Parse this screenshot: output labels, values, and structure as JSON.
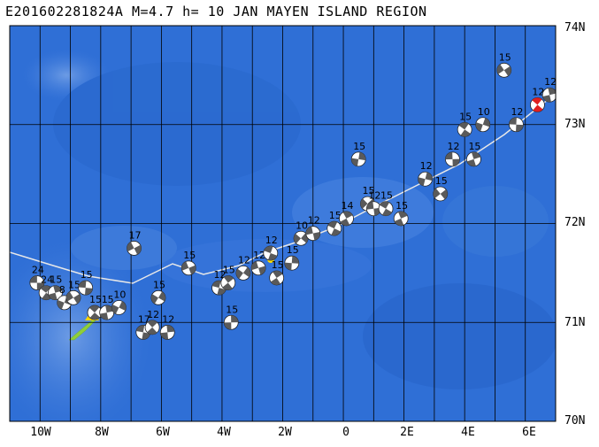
{
  "header": {
    "title": "E201602281824A M=4.7 h= 10 JAN MAYEN ISLAND REGION"
  },
  "map": {
    "lon_range": [
      -11,
      7
    ],
    "lat_range": [
      70,
      74
    ],
    "lat_labels": [
      "74N",
      "73N",
      "72N",
      "71N",
      "70N"
    ],
    "lat_values": [
      74,
      73,
      72,
      71,
      70
    ],
    "lon_labels": [
      "10W",
      "8W",
      "6W",
      "4W",
      "2W",
      "0",
      "2E",
      "4E",
      "6E"
    ],
    "lon_values": [
      -10,
      -8,
      -6,
      -4,
      -2,
      0,
      2,
      4,
      6
    ],
    "colors": {
      "ocean": "#2f6fd6",
      "deep": "#2a5fc0",
      "grid": "#000000",
      "ridge": "#e8e8e8",
      "island": "#8fce3a"
    }
  },
  "events": [
    {
      "lon": -10.1,
      "lat": 71.4,
      "depth": "24"
    },
    {
      "lon": -9.8,
      "lat": 71.3,
      "depth": "24"
    },
    {
      "lon": -9.5,
      "lat": 71.3,
      "depth": "15"
    },
    {
      "lon": -9.2,
      "lat": 71.2,
      "depth": "8"
    },
    {
      "lon": -8.9,
      "lat": 71.25,
      "depth": "15"
    },
    {
      "lon": -8.5,
      "lat": 71.35,
      "depth": "15"
    },
    {
      "lon": -8.2,
      "lat": 71.1,
      "depth": "15"
    },
    {
      "lon": -7.8,
      "lat": 71.1,
      "depth": "15"
    },
    {
      "lon": -7.4,
      "lat": 71.15,
      "depth": "10"
    },
    {
      "lon": -6.9,
      "lat": 71.75,
      "depth": "17"
    },
    {
      "lon": -6.6,
      "lat": 70.9,
      "depth": "17"
    },
    {
      "lon": -6.3,
      "lat": 70.95,
      "depth": "12"
    },
    {
      "lon": -5.8,
      "lat": 70.9,
      "depth": "12"
    },
    {
      "lon": -6.1,
      "lat": 71.25,
      "depth": "15"
    },
    {
      "lon": -5.1,
      "lat": 71.55,
      "depth": "15"
    },
    {
      "lon": -4.1,
      "lat": 71.35,
      "depth": "12"
    },
    {
      "lon": -3.8,
      "lat": 71.4,
      "depth": "15"
    },
    {
      "lon": -3.7,
      "lat": 71.0,
      "depth": "15"
    },
    {
      "lon": -3.3,
      "lat": 71.5,
      "depth": "12"
    },
    {
      "lon": -2.8,
      "lat": 71.55,
      "depth": "12"
    },
    {
      "lon": -2.4,
      "lat": 71.7,
      "depth": "12"
    },
    {
      "lon": -2.2,
      "lat": 71.45,
      "depth": "15"
    },
    {
      "lon": -1.7,
      "lat": 71.6,
      "depth": "15"
    },
    {
      "lon": -1.4,
      "lat": 71.85,
      "depth": "10"
    },
    {
      "lon": -1.0,
      "lat": 71.9,
      "depth": "12"
    },
    {
      "lon": -0.3,
      "lat": 71.95,
      "depth": "15"
    },
    {
      "lon": 0.1,
      "lat": 72.05,
      "depth": "14"
    },
    {
      "lon": 0.5,
      "lat": 72.65,
      "depth": "15"
    },
    {
      "lon": 0.8,
      "lat": 72.2,
      "depth": "15"
    },
    {
      "lon": 1.0,
      "lat": 72.15,
      "depth": "12"
    },
    {
      "lon": 1.4,
      "lat": 72.15,
      "depth": "15"
    },
    {
      "lon": 1.9,
      "lat": 72.05,
      "depth": "15"
    },
    {
      "lon": 2.7,
      "lat": 72.45,
      "depth": "12"
    },
    {
      "lon": 3.2,
      "lat": 72.3,
      "depth": "15"
    },
    {
      "lon": 3.6,
      "lat": 72.65,
      "depth": "12"
    },
    {
      "lon": 4.0,
      "lat": 72.95,
      "depth": "15"
    },
    {
      "lon": 4.3,
      "lat": 72.65,
      "depth": "15"
    },
    {
      "lon": 4.6,
      "lat": 73.0,
      "depth": "10"
    },
    {
      "lon": 5.3,
      "lat": 73.55,
      "depth": "15"
    },
    {
      "lon": 5.7,
      "lat": 73.0,
      "depth": "12"
    },
    {
      "lon": 6.4,
      "lat": 73.2,
      "depth": "12"
    },
    {
      "lon": 6.8,
      "lat": 73.3,
      "depth": "12"
    }
  ]
}
